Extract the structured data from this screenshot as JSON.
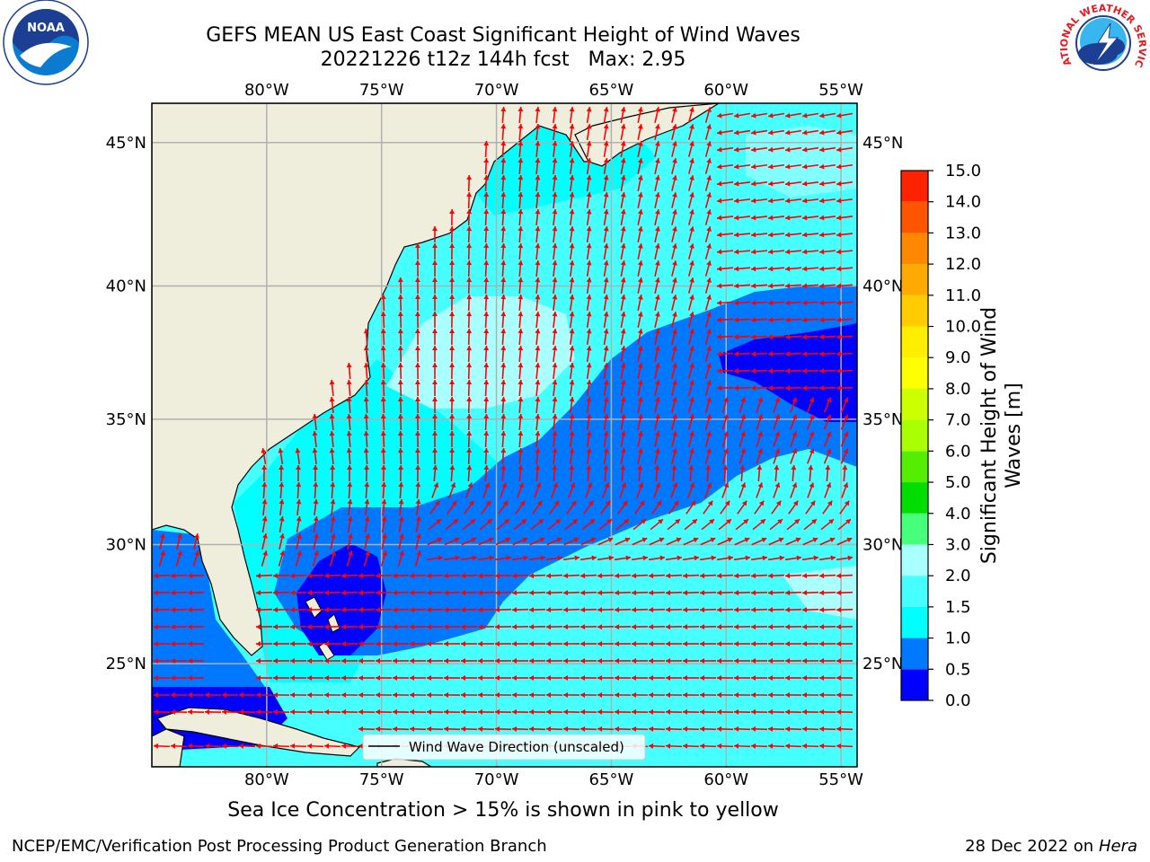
{
  "header": {
    "title": "GEFS MEAN US East Coast Significant Height of Wind Waves",
    "subtitle": "20221226 t12z 144h fcst   Max: 2.95",
    "left_logo": {
      "icon": "noaa-logo-icon",
      "text": "NOAA"
    },
    "right_logo": {
      "icon": "nws-logo-icon",
      "text": "NATIONAL WEATHER SERVICE"
    }
  },
  "map": {
    "lon_ticks": [
      "80°W",
      "75°W",
      "70°W",
      "65°W",
      "60°W",
      "55°W"
    ],
    "lat_ticks": [
      "45°N",
      "40°N",
      "35°N",
      "30°N",
      "25°N"
    ],
    "lon_values": [
      -80,
      -75,
      -70,
      -65,
      -60,
      -55
    ],
    "lat_values": [
      45,
      40,
      35,
      30,
      25
    ],
    "extent": {
      "lon": [
        -85,
        -54.3
      ],
      "lat": [
        20.5,
        46.3
      ]
    },
    "legend_label": "Wind Wave Direction (unscaled)",
    "arrow_color": "#ff0000",
    "land_color": "#efeedc"
  },
  "colorbar": {
    "label": "Significant Height of Wind Waves [m]",
    "levels": [
      "0.0",
      "0.5",
      "1.0",
      "1.5",
      "2.0",
      "3.0",
      "4.0",
      "5.0",
      "6.0",
      "7.0",
      "8.0",
      "9.0",
      "10.0",
      "11.0",
      "12.0",
      "13.0",
      "14.0",
      "15.0"
    ],
    "colors": [
      "#0000ff",
      "#0078ff",
      "#00ffff",
      "#46ffff",
      "#aaffff",
      "#46ff7a",
      "#00dd00",
      "#55ee00",
      "#aaff00",
      "#ccff00",
      "#ffff00",
      "#ffee00",
      "#ffcc00",
      "#ffaa00",
      "#ff8800",
      "#ff5500",
      "#ff2200"
    ]
  },
  "bottom_note": "Sea Ice Concentration > 15% is shown in pink to yellow",
  "footer": {
    "left": "NCEP/EMC/Verification Post Processing Product Generation Branch",
    "date": "28 Dec 2022 on",
    "host": "Hera"
  }
}
